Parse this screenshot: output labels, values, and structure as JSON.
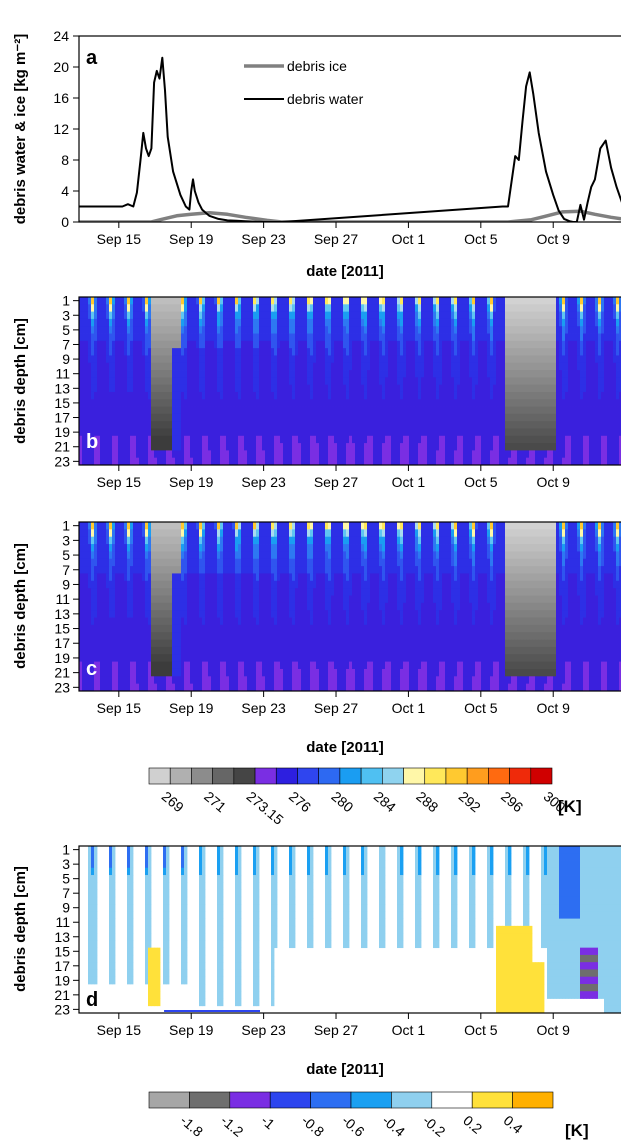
{
  "chart_data": [
    {
      "panel": "a",
      "type": "line",
      "ylabel": "debris water & ice [kg m⁻²]",
      "xlabel": "date [2011]",
      "ylim": [
        0,
        24
      ],
      "yticks": [
        0,
        4,
        8,
        12,
        16,
        20,
        24
      ],
      "xticks": [
        "Sep 15",
        "Sep 19",
        "Sep 23",
        "Sep 27",
        "Oct 1",
        "Oct 5",
        "Oct 9"
      ],
      "xticks_day": [
        0,
        4,
        8,
        12,
        16,
        20,
        24
      ],
      "xlim_day": [
        -2.2,
        27.8
      ],
      "legend_position": "top-center",
      "colors": {
        "debris_ice": "#808080",
        "debris_water": "#000000"
      },
      "series": [
        {
          "name": "debris ice",
          "x": [
            -2.2,
            1.8,
            2.3,
            3.2,
            4.0,
            5.0,
            6.0,
            7.0,
            8.2,
            9.0,
            21.5,
            22.8,
            23.5,
            24.5,
            25.5,
            26.3,
            27.2,
            27.8
          ],
          "y": [
            0,
            0,
            0.3,
            0.8,
            1.0,
            1.2,
            1.0,
            0.6,
            0.2,
            0,
            0,
            0.3,
            0.7,
            1.3,
            1.4,
            1.0,
            0.6,
            0.4
          ]
        },
        {
          "name": "debris water",
          "x": [
            -2.2,
            0.2,
            0.5,
            0.8,
            1.0,
            1.2,
            1.35,
            1.5,
            1.65,
            1.8,
            1.95,
            2.1,
            2.25,
            2.4,
            2.55,
            2.7,
            3.0,
            3.4,
            3.7,
            3.9,
            4.0,
            4.1,
            4.2,
            4.4,
            4.6,
            4.8,
            5.0,
            5.5,
            6.0,
            6.5,
            7.0,
            7.5,
            8.0,
            8.5,
            9.0,
            21.2,
            21.5,
            21.9,
            22.1,
            22.3,
            22.5,
            22.7,
            22.9,
            23.2,
            23.6,
            24.0,
            24.3,
            24.6,
            24.9,
            25.1,
            25.3,
            25.5,
            25.7,
            25.9,
            26.1,
            26.3,
            26.6,
            26.9,
            27.2,
            27.5,
            27.8
          ],
          "y": [
            2.0,
            2.0,
            2.3,
            2.0,
            3.8,
            8.0,
            11.5,
            9.5,
            8.5,
            9.5,
            18.0,
            19.5,
            18.5,
            21.2,
            17.0,
            11.0,
            6.5,
            3.5,
            2.0,
            1.6,
            4.0,
            5.5,
            4.0,
            2.5,
            1.6,
            1.2,
            0.8,
            0.4,
            0.2,
            0.15,
            0.1,
            0.05,
            0,
            0,
            0,
            2.0,
            2.0,
            8.5,
            8.0,
            13.0,
            17.5,
            19.3,
            16.5,
            11.5,
            6.5,
            3.5,
            1.5,
            0.4,
            0.1,
            0,
            0,
            2.2,
            0.3,
            2.5,
            4.5,
            5.5,
            9.5,
            10.5,
            7.0,
            4.5,
            2.5
          ]
        }
      ]
    },
    {
      "panel": "b",
      "type": "heatmap",
      "ylabel": "debris depth [cm]",
      "yticks": [
        1,
        3,
        5,
        7,
        9,
        11,
        13,
        15,
        17,
        19,
        21,
        23
      ],
      "xticks": [
        "Sep 15",
        "Sep 19",
        "Sep 23",
        "Sep 27",
        "Oct 1",
        "Oct 5",
        "Oct 9"
      ],
      "colorbar": "temperature"
    },
    {
      "panel": "c",
      "type": "heatmap",
      "ylabel": "debris depth [cm]",
      "xlabel": "date [2011]",
      "yticks": [
        1,
        3,
        5,
        7,
        9,
        11,
        13,
        15,
        17,
        19,
        21,
        23
      ],
      "xticks": [
        "Sep 15",
        "Sep 19",
        "Sep 23",
        "Sep 27",
        "Oct 1",
        "Oct 5",
        "Oct 9"
      ],
      "colorbar": "temperature"
    },
    {
      "panel": "d",
      "type": "heatmap",
      "ylabel": "debris depth [cm]",
      "xlabel": "date [2011]",
      "yticks": [
        1,
        3,
        5,
        7,
        9,
        11,
        13,
        15,
        17,
        19,
        21,
        23
      ],
      "xticks": [
        "Sep 15",
        "Sep 19",
        "Sep 23",
        "Sep 27",
        "Oct 1",
        "Oct 5",
        "Oct 9"
      ],
      "colorbar": "difference"
    }
  ],
  "colorbars": {
    "temperature": {
      "unit": "[K]",
      "labels": [
        "269",
        "271",
        "273.15",
        "276",
        "280",
        "284",
        "288",
        "292",
        "296",
        "300"
      ],
      "colors": [
        "#d0d0d0",
        "#b0b0b0",
        "#8c8c8c",
        "#666666",
        "#454545",
        "#7a2ee3",
        "#2d1fe0",
        "#2f45ef",
        "#2d69f2",
        "#1a9df2",
        "#4fc0f2",
        "#8fd3ef",
        "#fff7a8",
        "#ffe85a",
        "#ffc930",
        "#ff9d1e",
        "#ff6a10",
        "#ef2a0a",
        "#d00000"
      ]
    },
    "difference": {
      "unit": "[K]",
      "labels": [
        "-1.8",
        "-1.2",
        "-1",
        "-0.8",
        "-0.6",
        "-0.4",
        "-0.2",
        "0.2",
        "0.4"
      ],
      "colors": [
        "#a6a6a6",
        "#6e6e6e",
        "#7a2ee3",
        "#2d45ef",
        "#2d6ef2",
        "#1aa0f2",
        "#8fd0ef",
        "#ffffff",
        "#ffe13a",
        "#ffb000"
      ]
    }
  }
}
